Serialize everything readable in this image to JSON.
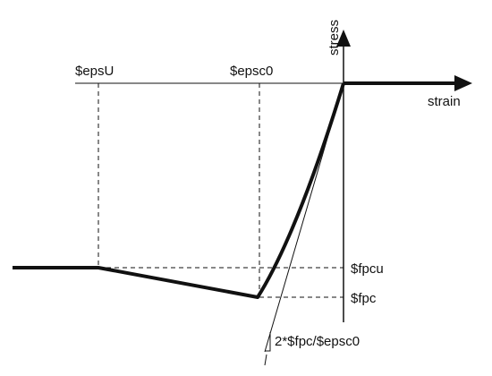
{
  "diagram": {
    "axis_labels": {
      "stress": "stress",
      "strain": "strain"
    },
    "strain_markers": {
      "eps_u": "$epsU",
      "eps_c0": "$epsc0"
    },
    "stress_markers": {
      "fpcu": "$fpcu",
      "fpc": "$fpc"
    },
    "slope_label": "2*$fpc/$epsc0",
    "colors": {
      "line": "#111111",
      "background": "#ffffff"
    }
  }
}
